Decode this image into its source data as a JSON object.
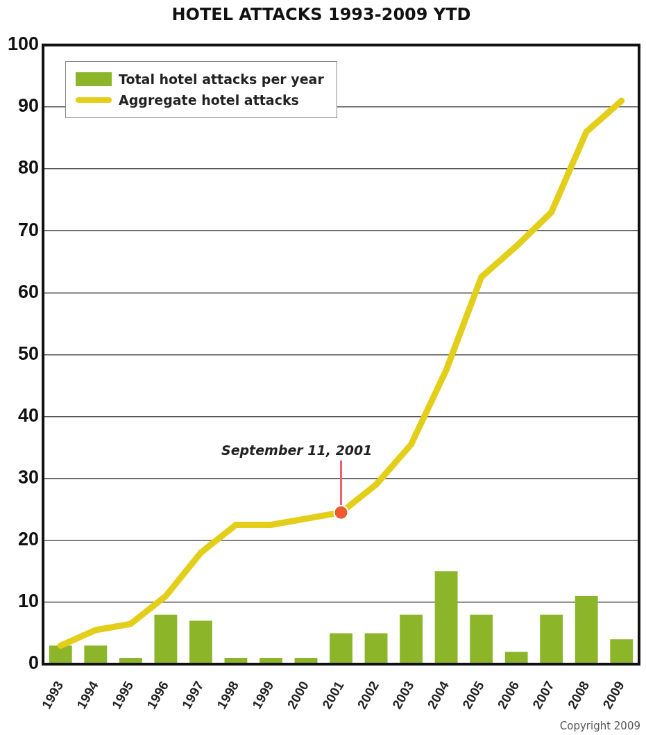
{
  "chart_data": {
    "type": "bar",
    "title": "HOTEL ATTACKS 1993-2009 YTD",
    "categories": [
      "1993",
      "1994",
      "1995",
      "1996",
      "1997",
      "1998",
      "1999",
      "2000",
      "2001",
      "2002",
      "2003",
      "2004",
      "2005",
      "2006",
      "2007",
      "2008",
      "2009"
    ],
    "series": [
      {
        "name": "Total hotel attacks per year",
        "color": "#8db52a",
        "values": [
          3,
          3,
          1,
          8,
          7,
          1,
          1,
          1,
          5,
          5,
          8,
          15,
          8,
          2,
          8,
          11,
          4
        ]
      },
      {
        "name": "Aggregate hotel attacks",
        "type": "line",
        "color": "#e3cf1a",
        "values": [
          3,
          5.5,
          6.5,
          11,
          18,
          22.5,
          22.5,
          23.5,
          24.5,
          29,
          35.5,
          47.5,
          62.5,
          67.5,
          73,
          86,
          91
        ]
      }
    ],
    "ylim": [
      0,
      100
    ],
    "yticks": [
      0,
      10,
      20,
      30,
      40,
      50,
      60,
      70,
      80,
      90,
      100
    ],
    "grid": "y",
    "legend": "top left",
    "marker": "none",
    "annotations": [
      {
        "text": "September 11, 2001",
        "x": "2001",
        "y": 24.5
      },
      "Copyright 2009"
    ]
  }
}
